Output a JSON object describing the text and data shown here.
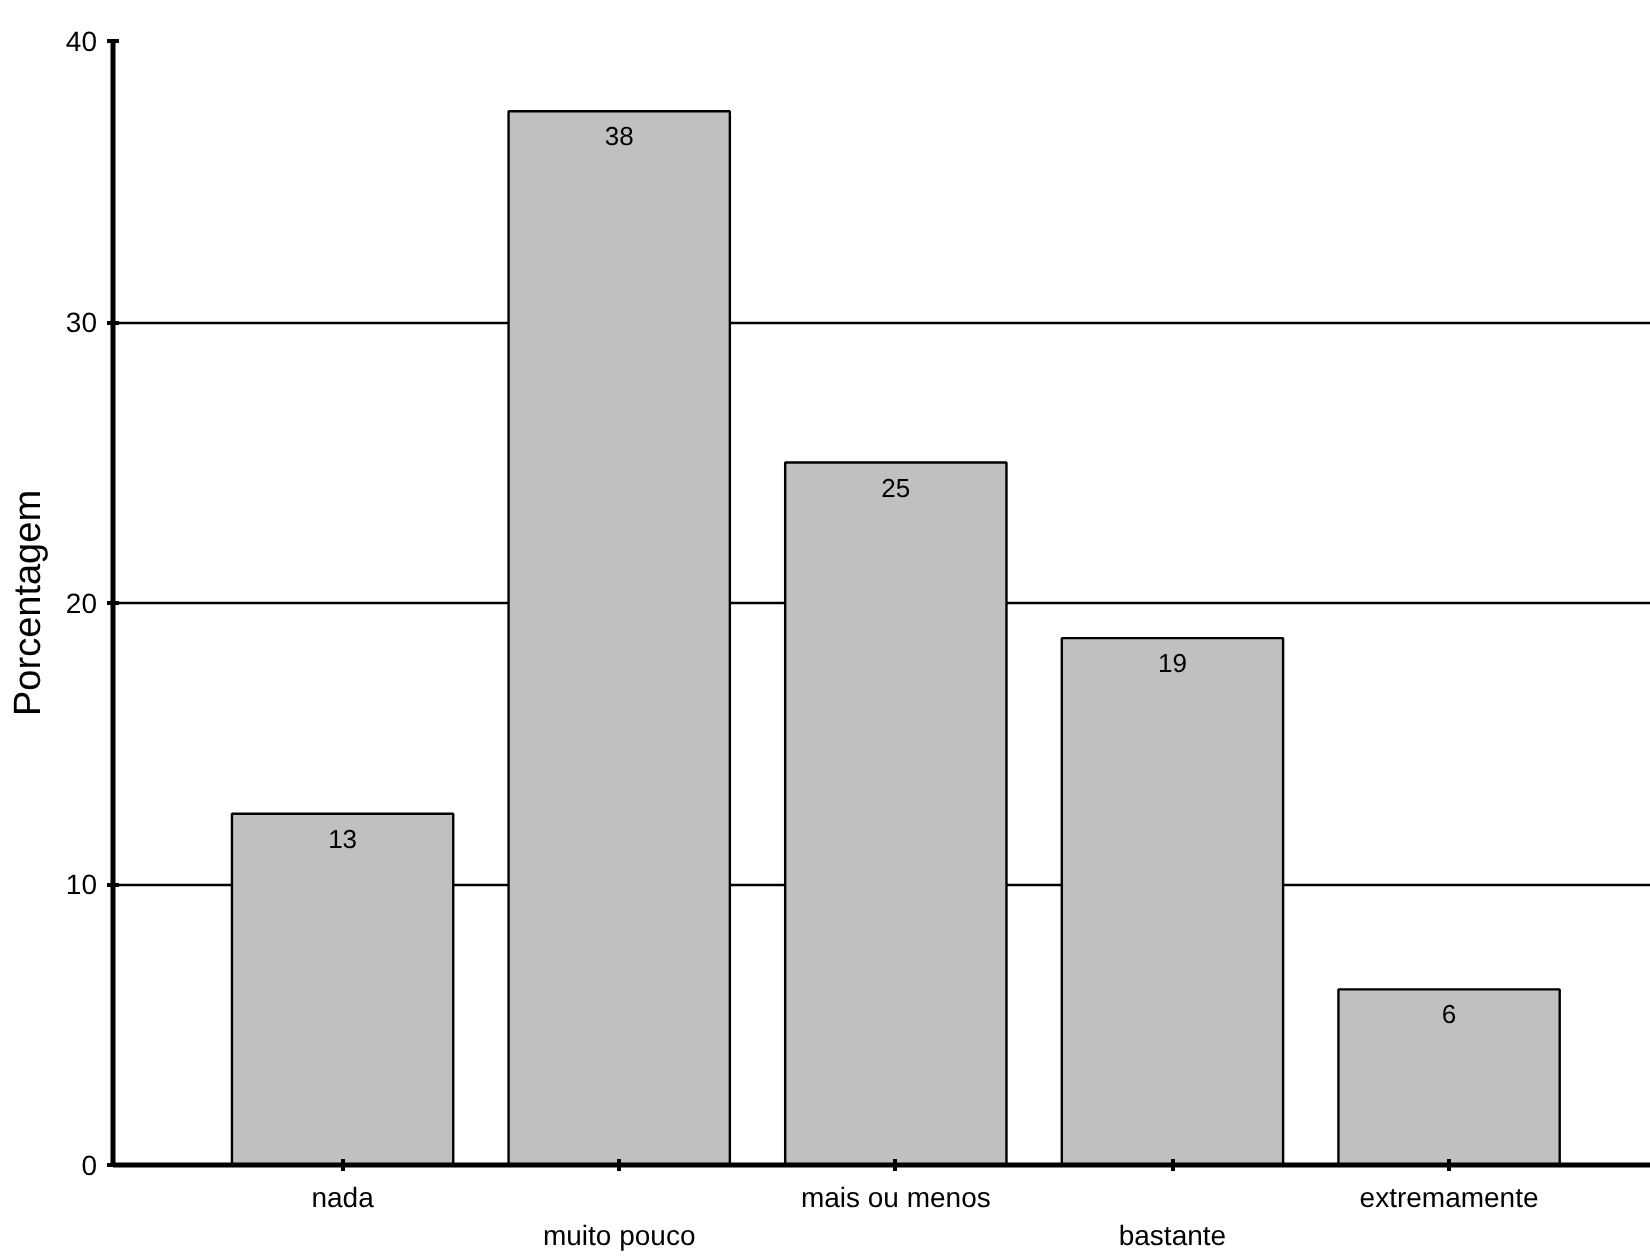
{
  "chart_data": {
    "type": "bar",
    "ylabel": "Porcentagem",
    "categories": [
      "nada",
      "muito pouco",
      "mais ou menos",
      "bastante",
      "extremamente"
    ],
    "values": [
      12.5,
      37.5,
      25,
      18.75,
      6.25
    ],
    "value_labels": [
      "13",
      "38",
      "25",
      "19",
      "6"
    ],
    "color": "#c0c0c0",
    "ylim": [
      0,
      40
    ],
    "yticks": [
      0,
      10,
      20,
      30,
      40
    ],
    "grid": "y"
  }
}
